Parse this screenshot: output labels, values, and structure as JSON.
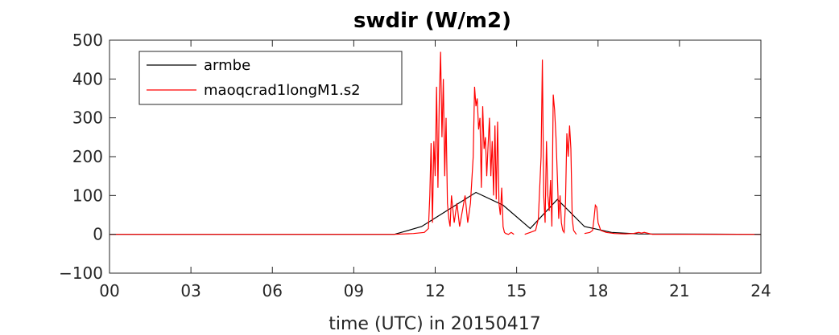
{
  "chart_data": {
    "type": "line",
    "title": "swdir  (W/m2)",
    "xlabel": "time (UTC) in 20150417",
    "ylabel": "",
    "xlim": [
      0,
      24
    ],
    "ylim": [
      -100,
      500
    ],
    "xticks": [
      0,
      3,
      6,
      9,
      12,
      15,
      18,
      21,
      24
    ],
    "xtick_labels": [
      "00",
      "03",
      "06",
      "09",
      "12",
      "15",
      "18",
      "21",
      "24"
    ],
    "yticks": [
      -100,
      0,
      100,
      200,
      300,
      400,
      500
    ],
    "ytick_labels": [
      "−100",
      "0",
      "100",
      "200",
      "300",
      "400",
      "500"
    ],
    "legend_position": "top-left",
    "grid": false,
    "series": [
      {
        "name": "armbe",
        "color": "#000000",
        "x": [
          0,
          10.5,
          11.5,
          13.5,
          14.5,
          15.5,
          16.5,
          17.5,
          18.5,
          19.5,
          24
        ],
        "y": [
          0,
          0,
          20,
          108,
          75,
          15,
          90,
          20,
          5,
          1,
          0
        ]
      },
      {
        "name": "maoqcrad1longM1.s2",
        "color": "#ff0000",
        "segments": [
          {
            "x": [
              0,
              3,
              6,
              9,
              10.5,
              11.2,
              11.6,
              11.75,
              11.8,
              11.85,
              11.9,
              11.95,
              12.0,
              12.05,
              12.1,
              12.15,
              12.2,
              12.25,
              12.3,
              12.35,
              12.4,
              12.45,
              12.5,
              12.55,
              12.6,
              12.7,
              12.8,
              12.9,
              13.0,
              13.1,
              13.2,
              13.3,
              13.4,
              13.45,
              13.5,
              13.55,
              13.6,
              13.65,
              13.7,
              13.75,
              13.8,
              13.85,
              13.9,
              13.95,
              14.0,
              14.05,
              14.1,
              14.15,
              14.2,
              14.25,
              14.3,
              14.35,
              14.4,
              14.45,
              14.5,
              14.55,
              14.6,
              14.7,
              14.8,
              14.9
            ],
            "y": [
              0,
              0,
              0,
              0,
              0,
              2,
              5,
              15,
              100,
              235,
              30,
              240,
              150,
              380,
              120,
              350,
              470,
              250,
              400,
              150,
              300,
              80,
              40,
              20,
              100,
              30,
              80,
              20,
              60,
              100,
              30,
              80,
              200,
              380,
              330,
              350,
              270,
              300,
              120,
              330,
              220,
              250,
              150,
              230,
              300,
              150,
              240,
              100,
              280,
              90,
              290,
              80,
              50,
              120,
              20,
              5,
              2,
              0,
              5,
              0
            ]
          },
          {
            "x": [
              15.3,
              15.5,
              15.7,
              15.8,
              15.9,
              15.95,
              16.0,
              16.05,
              16.1,
              16.15,
              16.2,
              16.25,
              16.3,
              16.35,
              16.4,
              16.45,
              16.5,
              16.55,
              16.6,
              16.65,
              16.7,
              16.75,
              16.8,
              16.85,
              16.9,
              16.95,
              17.0,
              17.05,
              17.1,
              17.2
            ],
            "y": [
              0,
              5,
              10,
              40,
              200,
              450,
              100,
              30,
              240,
              100,
              60,
              140,
              20,
              360,
              320,
              250,
              150,
              40,
              100,
              30,
              10,
              5,
              80,
              260,
              200,
              280,
              220,
              40,
              10,
              0
            ]
          },
          {
            "x": [
              17.5,
              17.7,
              17.8,
              17.85,
              17.9,
              17.95,
              18.0,
              18.1,
              18.3,
              18.6,
              19.0,
              19.3,
              19.5,
              19.6,
              19.7,
              20.0,
              21.0,
              22.0,
              23.0,
              24.0
            ],
            "y": [
              2,
              5,
              10,
              40,
              75,
              70,
              30,
              10,
              5,
              2,
              1,
              2,
              5,
              3,
              5,
              0,
              0,
              0,
              0,
              0
            ]
          }
        ]
      }
    ]
  }
}
